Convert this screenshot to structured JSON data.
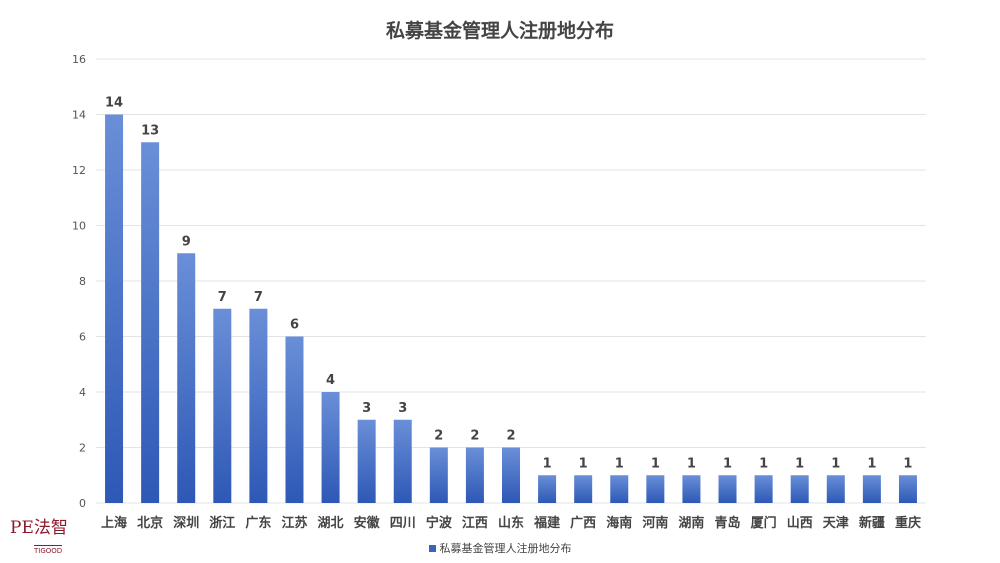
{
  "chart_data": {
    "type": "bar",
    "title": "私募基金管理人注册地分布",
    "categories": [
      "上海",
      "北京",
      "深圳",
      "浙江",
      "广东",
      "江苏",
      "湖北",
      "安徽",
      "四川",
      "宁波",
      "江西",
      "山东",
      "福建",
      "广西",
      "海南",
      "河南",
      "湖南",
      "青岛",
      "厦门",
      "山西",
      "天津",
      "新疆",
      "重庆"
    ],
    "series": [
      {
        "name": "私募基金管理人注册地分布",
        "values": [
          14,
          13,
          9,
          7,
          7,
          6,
          4,
          3,
          3,
          2,
          2,
          2,
          1,
          1,
          1,
          1,
          1,
          1,
          1,
          1,
          1,
          1,
          1
        ]
      }
    ],
    "ylim": [
      0,
      16
    ],
    "yticks": [
      0,
      2,
      4,
      6,
      8,
      10,
      12,
      14,
      16
    ],
    "grid": true,
    "legend": "bottom",
    "data_labels": true,
    "colors": {
      "bar_top": "#6a8fd8",
      "bar_bottom": "#2d58b5",
      "grid": "#e3e3e3",
      "label": "#444444"
    }
  },
  "logo": {
    "main": "PE法智",
    "sub": "TIGOOD"
  }
}
